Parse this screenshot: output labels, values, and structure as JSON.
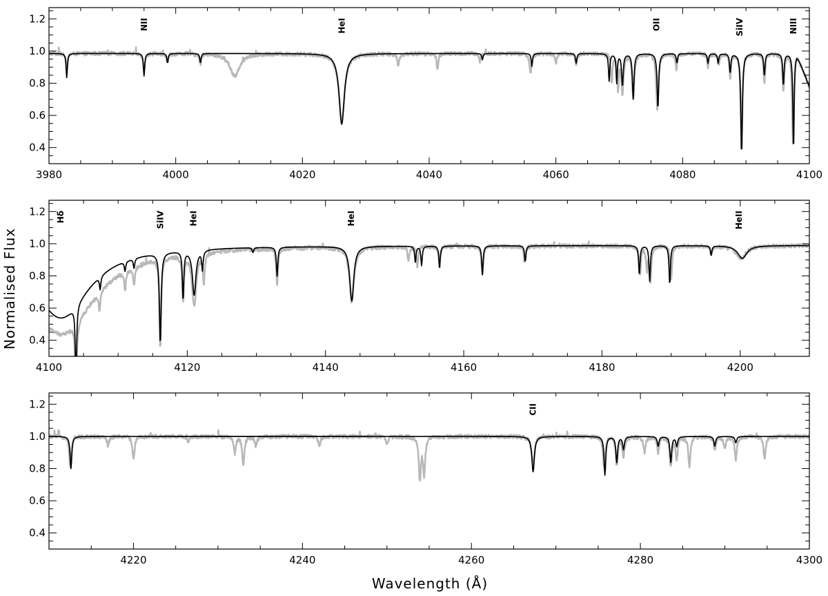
{
  "figure": {
    "ylabel": "Normalised Flux",
    "xlabel": "Wavelength (Å)"
  },
  "chart_data": [
    {
      "type": "line",
      "xlim": [
        3980,
        4100
      ],
      "ylim": [
        0.3,
        1.27
      ],
      "xticks": [
        3980,
        4000,
        4020,
        4040,
        4060,
        4080,
        4100
      ],
      "yticks": [
        0.4,
        0.6,
        0.8,
        1.0,
        1.2
      ],
      "xtick_labels": [
        "3980",
        "4000",
        "4020",
        "4040",
        "4060",
        "4080",
        "4100"
      ],
      "ytick_labels": [
        "0.4",
        "0.6",
        "0.8",
        "1.0",
        "1.2"
      ],
      "continuum": 0.985,
      "end_slope": {
        "start": 4098.0,
        "end_value": 0.78
      },
      "annotations": [
        {
          "text": "NII",
          "x": 3995.0
        },
        {
          "text": "HeI",
          "x": 4026.2
        },
        {
          "text": "OII",
          "x": 4075.9
        },
        {
          "text": "SiIV",
          "x": 4089.0
        },
        {
          "text": "NIII",
          "x": 4097.5
        }
      ],
      "series": [
        {
          "role": "observed",
          "color": "#b8b8b8",
          "noise": 0.012,
          "lines": [
            [
              3982.8,
              0.1,
              0.15
            ],
            [
              3995.0,
              0.11,
              0.15
            ],
            [
              3998.7,
              0.06,
              0.15
            ],
            [
              4003.9,
              0.06,
              0.15
            ],
            [
              4009.3,
              0.14,
              0.9
            ],
            [
              4026.2,
              0.42,
              0.55
            ],
            [
              4035.1,
              0.07,
              0.2
            ],
            [
              4041.3,
              0.1,
              0.15
            ],
            [
              4048.0,
              0.05,
              0.15
            ],
            [
              4056.0,
              0.12,
              0.2
            ],
            [
              4060.0,
              0.06,
              0.15
            ],
            [
              4063.2,
              0.08,
              0.15
            ],
            [
              4068.8,
              0.18,
              0.15
            ],
            [
              4069.8,
              0.22,
              0.15
            ],
            [
              4070.5,
              0.24,
              0.2
            ],
            [
              4072.2,
              0.28,
              0.2
            ],
            [
              4076.0,
              0.35,
              0.2
            ],
            [
              4079.0,
              0.1,
              0.15
            ],
            [
              4084.0,
              0.08,
              0.15
            ],
            [
              4085.7,
              0.08,
              0.15
            ],
            [
              4087.5,
              0.15,
              0.15
            ],
            [
              4089.3,
              0.62,
              0.15
            ],
            [
              4092.9,
              0.18,
              0.15
            ],
            [
              4095.9,
              0.24,
              0.15
            ],
            [
              4097.4,
              0.55,
              0.15
            ]
          ]
        },
        {
          "role": "model",
          "color": "#000000",
          "noise": 0,
          "lines": [
            [
              3982.8,
              0.15,
              0.12
            ],
            [
              3995.0,
              0.14,
              0.12
            ],
            [
              3998.7,
              0.06,
              0.12
            ],
            [
              4003.9,
              0.06,
              0.12
            ],
            [
              4026.2,
              0.44,
              0.5
            ],
            [
              4048.4,
              0.04,
              0.12
            ],
            [
              4056.2,
              0.08,
              0.12
            ],
            [
              4063.2,
              0.06,
              0.12
            ],
            [
              4068.4,
              0.17,
              0.12
            ],
            [
              4069.6,
              0.18,
              0.12
            ],
            [
              4070.5,
              0.2,
              0.15
            ],
            [
              4072.2,
              0.28,
              0.15
            ],
            [
              4076.1,
              0.34,
              0.15
            ],
            [
              4079.1,
              0.06,
              0.12
            ],
            [
              4084.0,
              0.06,
              0.12
            ],
            [
              4085.6,
              0.06,
              0.12
            ],
            [
              4087.5,
              0.12,
              0.12
            ],
            [
              4089.3,
              0.62,
              0.15
            ],
            [
              4092.9,
              0.14,
              0.12
            ],
            [
              4095.9,
              0.2,
              0.12
            ],
            [
              4097.5,
              0.6,
              0.12
            ]
          ]
        }
      ]
    },
    {
      "type": "line",
      "xlim": [
        4100,
        4210
      ],
      "ylim": [
        0.3,
        1.27
      ],
      "xticks": [
        4100,
        4120,
        4140,
        4160,
        4180,
        4200
      ],
      "yticks": [
        0.4,
        0.6,
        0.8,
        1.0,
        1.2
      ],
      "xtick_labels": [
        "4100",
        "4120",
        "4140",
        "4160",
        "4180",
        "4200"
      ],
      "ytick_labels": [
        "0.4",
        "0.6",
        "0.8",
        "1.0",
        "1.2"
      ],
      "continuum": 0.99,
      "annotations": [
        {
          "text": "Hδ",
          "x": 4101.7
        },
        {
          "text": "SiIV",
          "x": 4116.1
        },
        {
          "text": "HeI",
          "x": 4120.9
        },
        {
          "text": "HeI",
          "x": 4143.7
        },
        {
          "text": "HeII",
          "x": 4199.8
        }
      ],
      "series": [
        {
          "role": "observed",
          "color": "#b8b8b8",
          "noise": 0.012,
          "lines": [
            [
              4101.7,
              0.55,
              6.0
            ],
            [
              4103.9,
              0.4,
              0.15
            ],
            [
              4107.3,
              0.12,
              0.15
            ],
            [
              4111.0,
              0.12,
              0.15
            ],
            [
              4112.3,
              0.12,
              0.15
            ],
            [
              4116.1,
              0.55,
              0.15
            ],
            [
              4119.4,
              0.28,
              0.15
            ],
            [
              4121.0,
              0.33,
              0.35
            ],
            [
              4122.4,
              0.18,
              0.15
            ],
            [
              4133.0,
              0.22,
              0.15
            ],
            [
              4143.8,
              0.34,
              0.4
            ],
            [
              4152.0,
              0.08,
              0.15
            ],
            [
              4153.3,
              0.12,
              0.15
            ],
            [
              4156.5,
              0.1,
              0.15
            ],
            [
              4162.7,
              0.18,
              0.15
            ],
            [
              4168.8,
              0.1,
              0.15
            ],
            [
              4185.5,
              0.18,
              0.15
            ],
            [
              4186.5,
              0.14,
              0.15
            ],
            [
              4187.0,
              0.22,
              0.15
            ],
            [
              4190.0,
              0.22,
              0.15
            ],
            [
              4195.8,
              0.06,
              0.15
            ],
            [
              4200.1,
              0.08,
              0.9
            ]
          ]
        },
        {
          "role": "model",
          "color": "#000000",
          "noise": 0,
          "lines": [
            [
              4101.7,
              0.45,
              5.0
            ],
            [
              4103.9,
              0.45,
              0.12
            ],
            [
              4107.4,
              0.08,
              0.12
            ],
            [
              4111.0,
              0.06,
              0.12
            ],
            [
              4112.3,
              0.06,
              0.12
            ],
            [
              4116.1,
              0.56,
              0.15
            ],
            [
              4119.4,
              0.3,
              0.12
            ],
            [
              4121.0,
              0.28,
              0.3
            ],
            [
              4122.2,
              0.12,
              0.12
            ],
            [
              4129.5,
              0.03,
              0.12
            ],
            [
              4133.0,
              0.18,
              0.12
            ],
            [
              4143.8,
              0.34,
              0.35
            ],
            [
              4153.0,
              0.1,
              0.12
            ],
            [
              4153.9,
              0.12,
              0.12
            ],
            [
              4156.5,
              0.14,
              0.12
            ],
            [
              4162.7,
              0.18,
              0.12
            ],
            [
              4168.9,
              0.1,
              0.12
            ],
            [
              4185.4,
              0.18,
              0.12
            ],
            [
              4186.9,
              0.22,
              0.12
            ],
            [
              4189.8,
              0.24,
              0.12
            ],
            [
              4195.8,
              0.06,
              0.12
            ],
            [
              4200.3,
              0.08,
              0.8
            ]
          ]
        }
      ]
    },
    {
      "type": "line",
      "xlim": [
        4210,
        4300
      ],
      "ylim": [
        0.3,
        1.27
      ],
      "xticks": [
        4220,
        4240,
        4260,
        4280,
        4300
      ],
      "yticks": [
        0.4,
        0.6,
        0.8,
        1.0,
        1.2
      ],
      "xtick_labels": [
        "4220",
        "4240",
        "4260",
        "4280",
        "4300"
      ],
      "ytick_labels": [
        "0.4",
        "0.6",
        "0.8",
        "1.0",
        "1.2"
      ],
      "continuum": 1.0,
      "annotations": [
        {
          "text": "CII",
          "x": 4267.3
        }
      ],
      "series": [
        {
          "role": "observed",
          "color": "#b8b8b8",
          "noise": 0.012,
          "lines": [
            [
              4212.5,
              0.18,
              0.15
            ],
            [
              4217.0,
              0.06,
              0.15
            ],
            [
              4220.0,
              0.14,
              0.15
            ],
            [
              4226.5,
              0.04,
              0.15
            ],
            [
              4232.0,
              0.1,
              0.15
            ],
            [
              4233.0,
              0.18,
              0.15
            ],
            [
              4234.5,
              0.06,
              0.15
            ],
            [
              4242.0,
              0.06,
              0.15
            ],
            [
              4250.0,
              0.05,
              0.15
            ],
            [
              4253.9,
              0.26,
              0.15
            ],
            [
              4254.4,
              0.24,
              0.15
            ],
            [
              4267.3,
              0.18,
              0.2
            ],
            [
              4275.7,
              0.2,
              0.15
            ],
            [
              4277.2,
              0.18,
              0.15
            ],
            [
              4278.0,
              0.12,
              0.15
            ],
            [
              4280.5,
              0.1,
              0.15
            ],
            [
              4282.1,
              0.1,
              0.15
            ],
            [
              4283.6,
              0.18,
              0.15
            ],
            [
              4284.3,
              0.14,
              0.15
            ],
            [
              4285.8,
              0.18,
              0.15
            ],
            [
              4288.8,
              0.08,
              0.15
            ],
            [
              4290.0,
              0.08,
              0.15
            ],
            [
              4291.3,
              0.14,
              0.15
            ],
            [
              4294.7,
              0.14,
              0.15
            ]
          ]
        },
        {
          "role": "model",
          "color": "#000000",
          "noise": 0,
          "lines": [
            [
              4212.6,
              0.2,
              0.12
            ],
            [
              4267.3,
              0.22,
              0.18
            ],
            [
              4275.8,
              0.24,
              0.12
            ],
            [
              4277.2,
              0.16,
              0.12
            ],
            [
              4278.0,
              0.08,
              0.12
            ],
            [
              4282.1,
              0.06,
              0.12
            ],
            [
              4283.6,
              0.16,
              0.12
            ],
            [
              4284.3,
              0.06,
              0.12
            ],
            [
              4288.8,
              0.06,
              0.12
            ],
            [
              4291.3,
              0.04,
              0.12
            ]
          ]
        }
      ]
    }
  ]
}
